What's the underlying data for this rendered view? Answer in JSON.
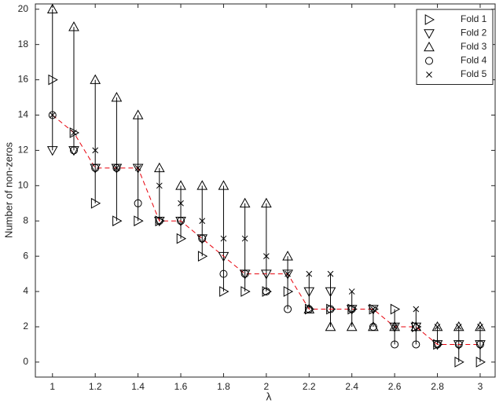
{
  "chart_data": {
    "type": "scatter",
    "xlabel": "λ",
    "ylabel": "Number of non-zeros",
    "x": [
      1,
      1.1,
      1.2,
      1.3,
      1.4,
      1.5,
      1.6,
      1.7,
      1.8,
      1.9,
      2,
      2.1,
      2.2,
      2.3,
      2.4,
      2.5,
      2.6,
      2.7,
      2.8,
      2.9,
      3
    ],
    "series": [
      {
        "name": "Fold 1",
        "marker": "triangle-right",
        "color": "#000000",
        "values": [
          16,
          13,
          9,
          8,
          8,
          8,
          7,
          6,
          4,
          4,
          4,
          4,
          3,
          3,
          3,
          3,
          3,
          2,
          1,
          0,
          0
        ]
      },
      {
        "name": "Fold 2",
        "marker": "triangle-down",
        "color": "#000000",
        "values": [
          12,
          12,
          11,
          11,
          11,
          8,
          8,
          7,
          6,
          5,
          5,
          5,
          4,
          4,
          3,
          3,
          2,
          2,
          1,
          1,
          1
        ]
      },
      {
        "name": "Fold 3",
        "marker": "triangle-up",
        "color": "#000000",
        "values": [
          20,
          19,
          16,
          15,
          14,
          11,
          10,
          10,
          10,
          9,
          9,
          6,
          3,
          2,
          2,
          2,
          2,
          2,
          2,
          2,
          2
        ]
      },
      {
        "name": "Fold 4",
        "marker": "circle",
        "color": "#000000",
        "values": [
          14,
          12,
          11,
          11,
          9,
          8,
          8,
          7,
          5,
          5,
          4,
          3,
          3,
          3,
          3,
          2,
          1,
          1,
          1,
          1,
          1
        ]
      },
      {
        "name": "Fold 5",
        "marker": "x",
        "color": "#000000",
        "values": [
          14,
          13,
          12,
          11,
          11,
          10,
          9,
          8,
          7,
          7,
          6,
          5,
          5,
          5,
          4,
          3,
          2,
          3,
          2,
          2,
          2
        ]
      }
    ],
    "line_values": [
      14,
      13,
      11,
      11,
      11,
      8,
      8,
      7,
      6,
      5,
      5,
      5,
      3,
      3,
      3,
      3,
      2,
      2,
      1,
      1,
      1
    ],
    "line_color": "#e8000b",
    "xlim": [
      0.92,
      3.07
    ],
    "xticks": [
      1,
      1.2,
      1.4,
      1.6,
      1.8,
      2,
      2.2,
      2.4,
      2.6,
      2.8,
      3
    ],
    "ylim": [
      -0.85,
      20.3
    ],
    "yticks": [
      0,
      2,
      4,
      6,
      8,
      10,
      12,
      14,
      16,
      18,
      20
    ],
    "legend": "upper right"
  }
}
